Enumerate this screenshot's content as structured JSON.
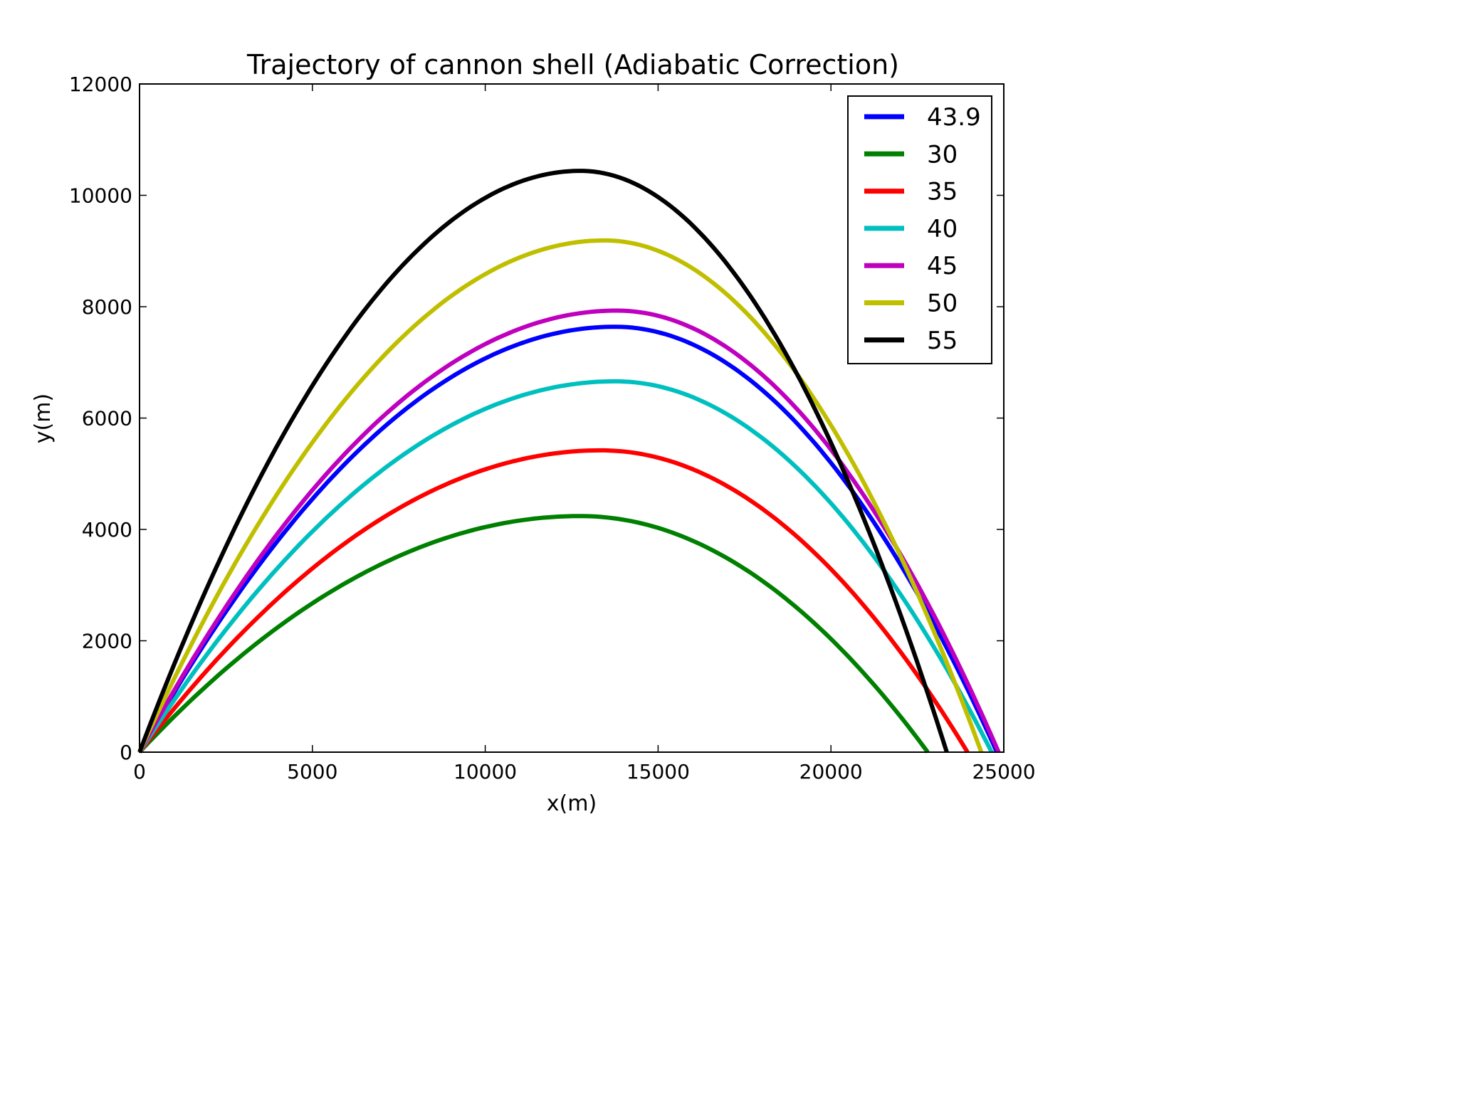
{
  "chart_data": {
    "type": "line",
    "title": "Trajectory of cannon shell (Adiabatic Correction)",
    "xlabel": "x(m)",
    "ylabel": "y(m)",
    "xlim": [
      0,
      25000
    ],
    "ylim": [
      0,
      12000
    ],
    "xticks": [
      "0",
      "5000",
      "10000",
      "15000",
      "20000",
      "25000"
    ],
    "yticks": [
      "0",
      "2000",
      "4000",
      "6000",
      "8000",
      "10000",
      "12000"
    ],
    "grid": false,
    "legend_position": "top-right",
    "series": [
      {
        "name": "43.9",
        "color": "#0000ff",
        "peak_x": 13750,
        "peak_y": 7640,
        "range": 24800
      },
      {
        "name": "30",
        "color": "#008000",
        "peak_x": 12750,
        "peak_y": 4240,
        "range": 22800
      },
      {
        "name": "35",
        "color": "#ff0000",
        "peak_x": 13350,
        "peak_y": 5420,
        "range": 23950
      },
      {
        "name": "40",
        "color": "#00bfbf",
        "peak_x": 13750,
        "peak_y": 6660,
        "range": 24650
      },
      {
        "name": "45",
        "color": "#bf00bf",
        "peak_x": 13800,
        "peak_y": 7930,
        "range": 24850
      },
      {
        "name": "50",
        "color": "#bfbf00",
        "peak_x": 13450,
        "peak_y": 9190,
        "range": 24350
      },
      {
        "name": "55",
        "color": "#000000",
        "peak_x": 12750,
        "peak_y": 10440,
        "range": 23350
      }
    ]
  }
}
